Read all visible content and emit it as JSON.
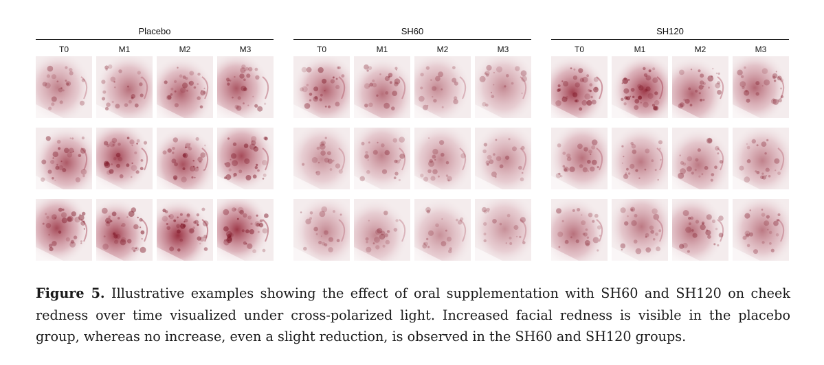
{
  "figure": {
    "groups": [
      {
        "name": "Placebo",
        "timepoints": [
          "T0",
          "M1",
          "M2",
          "M3"
        ],
        "redness": [
          [
            0.35,
            0.45,
            0.55,
            0.6
          ],
          [
            0.6,
            0.7,
            0.65,
            0.7
          ],
          [
            0.7,
            0.75,
            0.85,
            0.8
          ]
        ]
      },
      {
        "name": "SH60",
        "timepoints": [
          "T0",
          "M1",
          "M2",
          "M3"
        ],
        "redness": [
          [
            0.55,
            0.45,
            0.3,
            0.3
          ],
          [
            0.25,
            0.35,
            0.3,
            0.3
          ],
          [
            0.3,
            0.3,
            0.25,
            0.25
          ]
        ]
      },
      {
        "name": "SH120",
        "timepoints": [
          "T0",
          "M1",
          "M2",
          "M3"
        ],
        "redness": [
          [
            0.75,
            0.8,
            0.55,
            0.5
          ],
          [
            0.45,
            0.4,
            0.4,
            0.35
          ],
          [
            0.45,
            0.4,
            0.45,
            0.4
          ]
        ]
      }
    ]
  },
  "caption": {
    "label": "Figure 5.",
    "text": " Illustrative examples showing the effect of oral supplementation with SH60 and SH120 on cheek redness over time visualized under cross-polarized light. Increased facial redness is visible in the placebo group, whereas no increase, even a slight reduction, is observed in the SH60 and SH120 groups."
  },
  "colors": {
    "redness": "#8e1a2c",
    "skin": "#f4eced"
  }
}
